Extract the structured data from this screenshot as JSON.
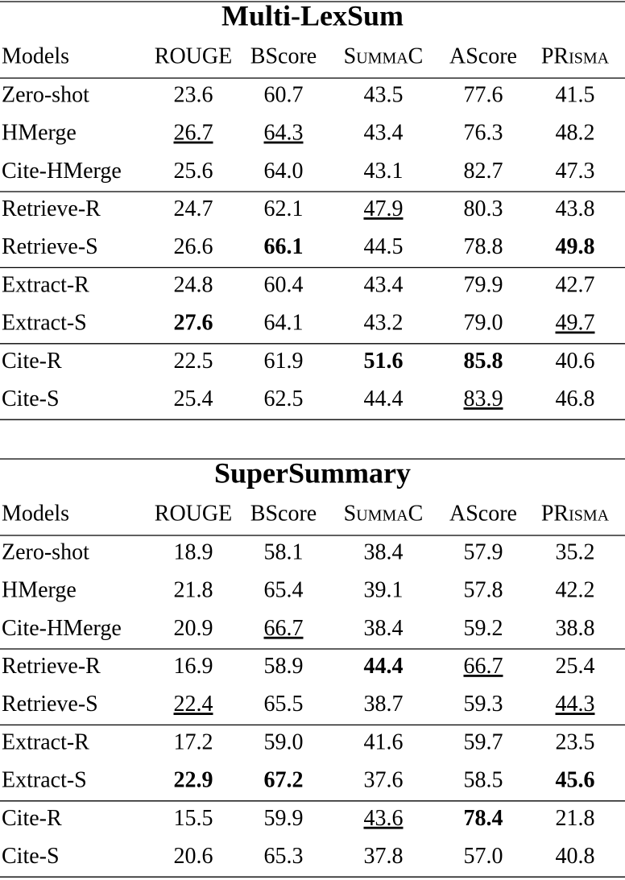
{
  "tables": [
    {
      "title": "Multi-LexSum",
      "header": [
        "Models",
        "ROUGE",
        "BScore",
        "SummaC",
        "AScore",
        "PRisma"
      ],
      "groups": [
        [
          [
            "Zero-shot",
            "23.6",
            "60.7",
            "43.5",
            "77.6",
            "41.5"
          ],
          [
            "HMerge",
            "26.7",
            "64.3",
            "43.4",
            "76.3",
            "48.2"
          ],
          [
            "Cite-HMerge",
            "25.6",
            "64.0",
            "43.1",
            "82.7",
            "47.3"
          ]
        ],
        [
          [
            "Retrieve-R",
            "24.7",
            "62.1",
            "47.9",
            "80.3",
            "43.8"
          ],
          [
            "Retrieve-S",
            "26.6",
            "66.1",
            "44.5",
            "78.8",
            "49.8"
          ]
        ],
        [
          [
            "Extract-R",
            "24.8",
            "60.4",
            "43.4",
            "79.9",
            "42.7"
          ],
          [
            "Extract-S",
            "27.6",
            "64.1",
            "43.2",
            "79.0",
            "49.7"
          ]
        ],
        [
          [
            "Cite-R",
            "22.5",
            "61.9",
            "51.6",
            "85.8",
            "40.6"
          ],
          [
            "Cite-S",
            "25.4",
            "62.5",
            "44.4",
            "83.9",
            "46.8"
          ]
        ]
      ],
      "bold": [
        [
          1,
          1,
          2
        ],
        [
          1,
          1,
          5
        ],
        [
          2,
          1,
          1
        ],
        [
          3,
          0,
          3
        ],
        [
          3,
          0,
          4
        ]
      ],
      "underline": [
        [
          0,
          1,
          1
        ],
        [
          0,
          1,
          2
        ],
        [
          1,
          0,
          3
        ],
        [
          2,
          1,
          5
        ],
        [
          3,
          1,
          4
        ]
      ]
    },
    {
      "title": "SuperSummary",
      "header": [
        "Models",
        "ROUGE",
        "BScore",
        "SummaC",
        "AScore",
        "PRisma"
      ],
      "groups": [
        [
          [
            "Zero-shot",
            "18.9",
            "58.1",
            "38.4",
            "57.9",
            "35.2"
          ],
          [
            "HMerge",
            "21.8",
            "65.4",
            "39.1",
            "57.8",
            "42.2"
          ],
          [
            "Cite-HMerge",
            "20.9",
            "66.7",
            "38.4",
            "59.2",
            "38.8"
          ]
        ],
        [
          [
            "Retrieve-R",
            "16.9",
            "58.9",
            "44.4",
            "66.7",
            "25.4"
          ],
          [
            "Retrieve-S",
            "22.4",
            "65.5",
            "38.7",
            "59.3",
            "44.3"
          ]
        ],
        [
          [
            "Extract-R",
            "17.2",
            "59.0",
            "41.6",
            "59.7",
            "23.5"
          ],
          [
            "Extract-S",
            "22.9",
            "67.2",
            "37.6",
            "58.5",
            "45.6"
          ]
        ],
        [
          [
            "Cite-R",
            "15.5",
            "59.9",
            "43.6",
            "78.4",
            "21.8"
          ],
          [
            "Cite-S",
            "20.6",
            "65.3",
            "37.8",
            "57.0",
            "40.8"
          ]
        ]
      ],
      "bold": [
        [
          1,
          0,
          3
        ],
        [
          2,
          1,
          1
        ],
        [
          2,
          1,
          2
        ],
        [
          2,
          1,
          5
        ],
        [
          3,
          0,
          4
        ]
      ],
      "underline": [
        [
          0,
          2,
          2
        ],
        [
          1,
          0,
          4
        ],
        [
          1,
          1,
          1
        ],
        [
          1,
          1,
          5
        ],
        [
          3,
          0,
          3
        ]
      ]
    }
  ]
}
